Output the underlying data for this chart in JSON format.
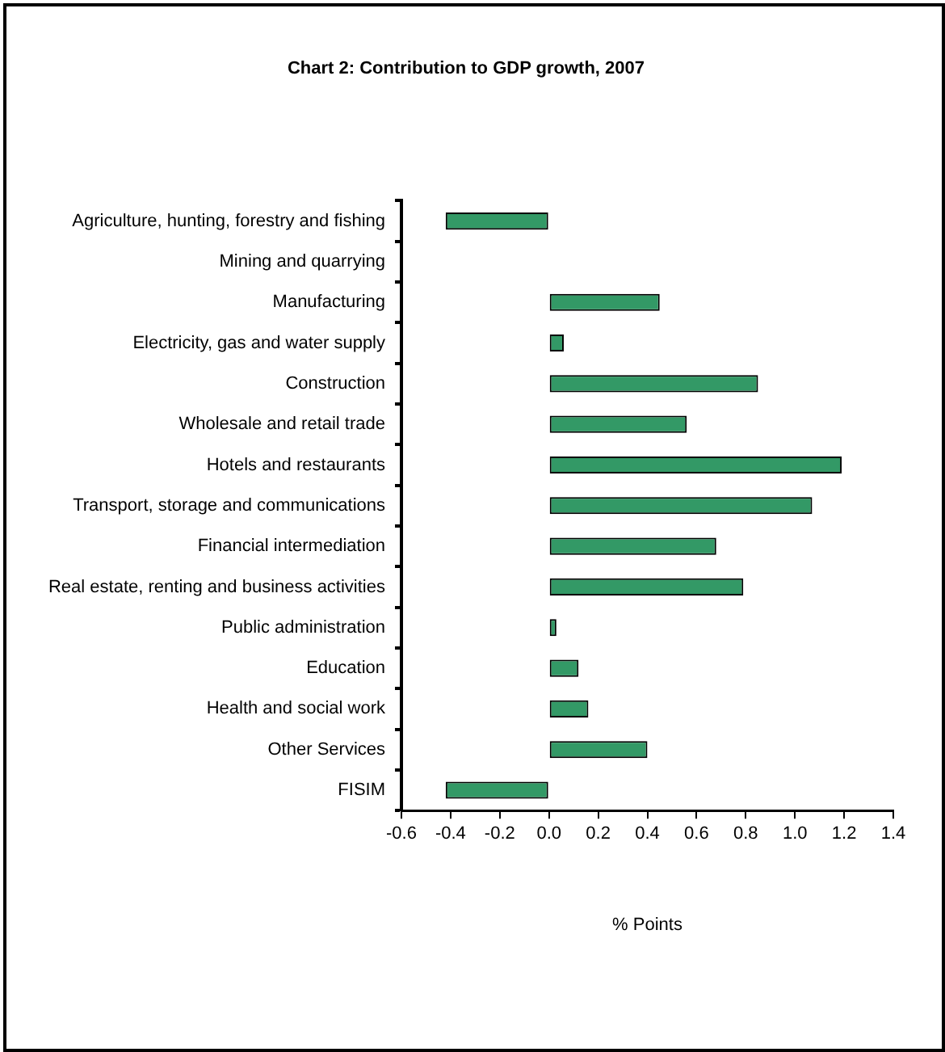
{
  "chart_data": {
    "type": "bar",
    "orientation": "horizontal",
    "title": "Chart 2: Contribution to GDP growth, 2007",
    "xlabel": "% Points",
    "categories": [
      "Agriculture, hunting, forestry and fishing",
      "Mining and quarrying",
      "Manufacturing",
      "Electricity, gas and water supply",
      "Construction",
      "Wholesale and retail trade",
      "Hotels and restaurants",
      "Transport, storage and communications",
      "Financial intermediation",
      "Real estate, renting and business activities",
      "Public administration",
      "Education",
      "Health and social work",
      "Other Services",
      "FISIM"
    ],
    "values": [
      -0.42,
      0,
      0.45,
      0.06,
      0.85,
      0.56,
      1.19,
      1.07,
      0.68,
      0.79,
      0.03,
      0.12,
      0.16,
      0.4,
      -0.42
    ],
    "color": "#339966",
    "xlim": [
      -0.6,
      1.4
    ],
    "xticks": [
      {
        "value": -0.6,
        "label": "-0.6"
      },
      {
        "value": -0.4,
        "label": "-0.4"
      },
      {
        "value": -0.2,
        "label": "-0.2"
      },
      {
        "value": 0,
        "label": "0.0"
      },
      {
        "value": 0.2,
        "label": "0.2"
      },
      {
        "value": 0.4,
        "label": "0.4"
      },
      {
        "value": 0.6,
        "label": "0.6"
      },
      {
        "value": 0.8,
        "label": "0.8"
      },
      {
        "value": 1,
        "label": "1.0"
      },
      {
        "value": 1.2,
        "label": "1.2"
      },
      {
        "value": 1.4,
        "label": "1.4"
      }
    ],
    "grid": false,
    "legend": false
  }
}
